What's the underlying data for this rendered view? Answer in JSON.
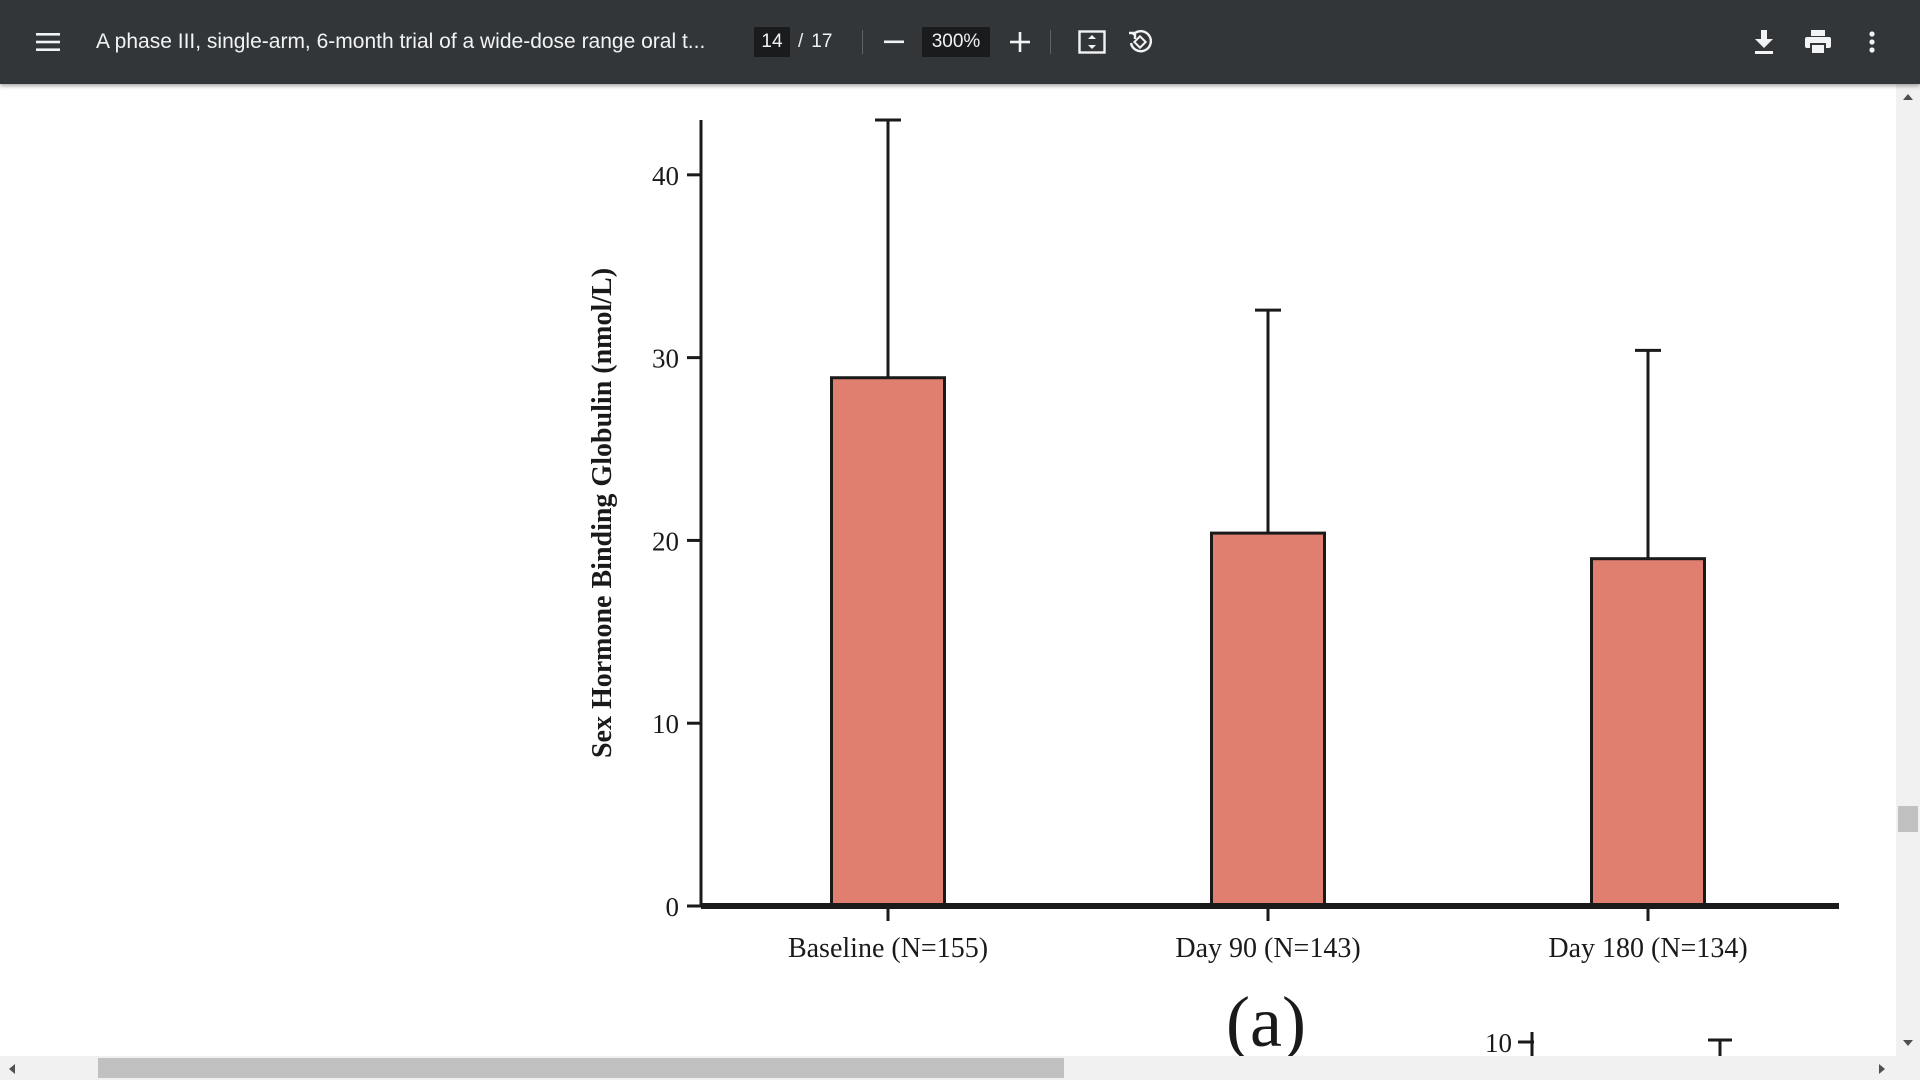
{
  "toolbar": {
    "menu_icon": "hamburger-menu-icon",
    "title": "A phase III, single-arm, 6-month trial of a wide-dose range oral t...",
    "page_current": "14",
    "page_separator": "/",
    "page_total": "17",
    "zoom": "300%",
    "icons": [
      "zoom-out-icon",
      "zoom-in-icon",
      "fit-to-page-icon",
      "rotate-icon",
      "download-icon",
      "print-icon",
      "more-vert-icon"
    ],
    "background": "#323639"
  },
  "chart_data": {
    "type": "bar",
    "categories": [
      "Baseline (N=155)",
      "Day 90 (N=143)",
      "Day 180 (N=134)"
    ],
    "values": [
      28.9,
      20.4,
      19.0
    ],
    "error_upper": [
      43.0,
      32.6,
      30.4
    ],
    "ylabel": "Sex Hormone Binding Globulin (nmol/L)",
    "xlabel": "",
    "ylim": [
      0,
      43
    ],
    "yticks": [
      0,
      10,
      20,
      30,
      40
    ],
    "bar_color": "#e07f70",
    "panel_label": "(a)",
    "next_panel_tick": "10"
  }
}
